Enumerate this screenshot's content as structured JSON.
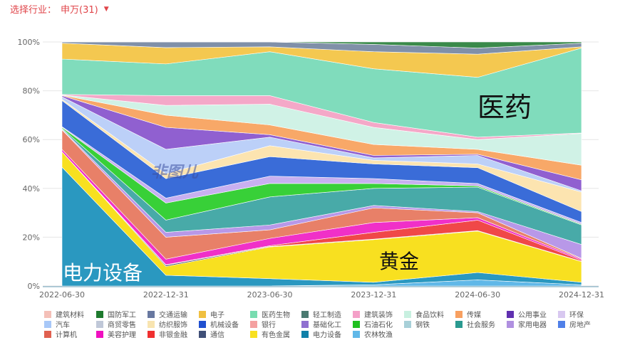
{
  "header": {
    "filter_label": "选择行业：",
    "filter_value": "申万(31)",
    "caret_icon": "caret-down-icon"
  },
  "watermark": "非图儿",
  "annotations": {
    "power": "电力设备",
    "gold": "黄金",
    "pharma": "医药"
  },
  "colors": {
    "header": "#e0454a",
    "grid": "#e6e6e6",
    "axis_text": "#666666"
  },
  "chart_data": {
    "type": "area",
    "stacked": "percent",
    "categories": [
      "2022-06-30",
      "2022-12-31",
      "2023-06-30",
      "2023-12-31",
      "2024-06-30",
      "2024-12-31"
    ],
    "y_ticks": [
      "0%",
      "20%",
      "40%",
      "60%",
      "80%",
      "100%"
    ],
    "ylim": [
      0,
      100
    ],
    "grid": true,
    "legend_position": "bottom",
    "series": [
      {
        "name": "农林牧渔",
        "color": "#60b8e8",
        "values": [
          0,
          0,
          0,
          0.5,
          2.5,
          0.5
        ]
      },
      {
        "name": "电力设备",
        "color": "#2a98c0",
        "values": [
          48.7,
          4.4,
          3,
          1,
          3,
          1
        ]
      },
      {
        "name": "有色金属",
        "color": "#f8e020",
        "values": [
          6.3,
          3.6,
          13,
          17.5,
          17,
          8.5
        ]
      },
      {
        "name": "通信",
        "color": "#405078",
        "values": [
          0,
          0.5,
          0.2,
          0.2,
          0.2,
          0.1
        ]
      },
      {
        "name": "非银金融",
        "color": "#f04848",
        "values": [
          0,
          0.2,
          0.3,
          2.8,
          4.3,
          0.4
        ]
      },
      {
        "name": "美容护理",
        "color": "#f030c8",
        "values": [
          1,
          2.3,
          3,
          4,
          1,
          0.5
        ]
      },
      {
        "name": "计算机",
        "color": "#e88068",
        "values": [
          8,
          9,
          3.5,
          6,
          2,
          0.3
        ]
      },
      {
        "name": "家用电器",
        "color": "#b898e8",
        "values": [
          0.3,
          2,
          2,
          1,
          0.5,
          5.7
        ]
      },
      {
        "name": "社会服务",
        "color": "#48aaa8",
        "values": [
          0.3,
          5,
          11.5,
          7,
          10,
          8
        ]
      },
      {
        "name": "石油石化",
        "color": "#38d038",
        "values": [
          0.4,
          7,
          5.5,
          2,
          0.5,
          0.3
        ]
      },
      {
        "name": "环保",
        "color": "#c8b0f0",
        "values": [
          0.3,
          2,
          3,
          2,
          1,
          0.7
        ]
      },
      {
        "name": "机械设备",
        "color": "#3a6cd8",
        "values": [
          10.7,
          8,
          8,
          6,
          6.5,
          4.5
        ]
      },
      {
        "name": "纺织服饰",
        "color": "#fce4b0",
        "values": [
          0.5,
          2,
          4.5,
          1.5,
          1.5,
          8
        ]
      },
      {
        "name": "汽车",
        "color": "#bcd0f8",
        "values": [
          1,
          10,
          3.5,
          1,
          3.5,
          0.5
        ]
      },
      {
        "name": "基础化工",
        "color": "#9060d0",
        "values": [
          0.5,
          9,
          1,
          1,
          0.5,
          4.5
        ]
      },
      {
        "name": "传媒",
        "color": "#f8a868",
        "values": [
          0.2,
          5,
          4,
          4.5,
          2,
          6
        ]
      },
      {
        "name": "食品饮料",
        "color": "#d0f2e6",
        "values": [
          0.1,
          4,
          8.5,
          7,
          4,
          13
        ]
      },
      {
        "name": "建筑装饰",
        "color": "#f4a8c8",
        "values": [
          0.2,
          4,
          3.5,
          2,
          1,
          0.2
        ]
      },
      {
        "name": "医药生物",
        "color": "#80dcbc",
        "values": [
          14.5,
          13,
          18,
          22,
          24.5,
          34.8
        ]
      },
      {
        "name": "电子",
        "color": "#f4c850",
        "values": [
          6.5,
          6.7,
          2,
          7,
          9.5,
          0.5
        ]
      },
      {
        "name": "交通运输",
        "color": "#8090a8",
        "values": [
          0.5,
          2.3,
          2,
          3,
          2.5,
          1.5
        ]
      },
      {
        "name": "国防军工",
        "color": "#3a8a4a",
        "values": [
          0,
          0,
          0,
          1,
          2.5,
          0.5
        ]
      }
    ],
    "legend": [
      {
        "name": "建筑材料",
        "color": "#f4c0b8"
      },
      {
        "name": "国防军工",
        "color": "#1e7a2e"
      },
      {
        "name": "交通运输",
        "color": "#6878a0"
      },
      {
        "name": "电子",
        "color": "#f0c040"
      },
      {
        "name": "医药生物",
        "color": "#78dcb0"
      },
      {
        "name": "轻工制造",
        "color": "#4a7a70"
      },
      {
        "name": "建筑装饰",
        "color": "#f4a0c8"
      },
      {
        "name": "食品饮料",
        "color": "#c8f0e0"
      },
      {
        "name": "传媒",
        "color": "#f8a060"
      },
      {
        "name": "公用事业",
        "color": "#6030b0"
      },
      {
        "name": "环保",
        "color": "#d8c8f0"
      },
      {
        "name": "汽车",
        "color": "#a8c8f8"
      },
      {
        "name": "商贸零售",
        "color": "#c0c8d8"
      },
      {
        "name": "纺织服饰",
        "color": "#f8e4b0"
      },
      {
        "name": "机械设备",
        "color": "#2050d0"
      },
      {
        "name": "银行",
        "color": "#f4a0a0"
      },
      {
        "name": "基础化工",
        "color": "#9070d0"
      },
      {
        "name": "石油石化",
        "color": "#20c020"
      },
      {
        "name": "钢铁",
        "color": "#a8d0d8"
      },
      {
        "name": "社会服务",
        "color": "#2a9a90"
      },
      {
        "name": "家用电器",
        "color": "#b090e0"
      },
      {
        "name": "房地产",
        "color": "#5080e8"
      },
      {
        "name": "计算机",
        "color": "#e06050"
      },
      {
        "name": "美容护理",
        "color": "#f010c0"
      },
      {
        "name": "非银金融",
        "color": "#f03030"
      },
      {
        "name": "通信",
        "color": "#405078"
      },
      {
        "name": "有色金属",
        "color": "#f8e020"
      },
      {
        "name": "电力设备",
        "color": "#1080a8"
      },
      {
        "name": "农林牧渔",
        "color": "#60b8e8"
      }
    ]
  }
}
